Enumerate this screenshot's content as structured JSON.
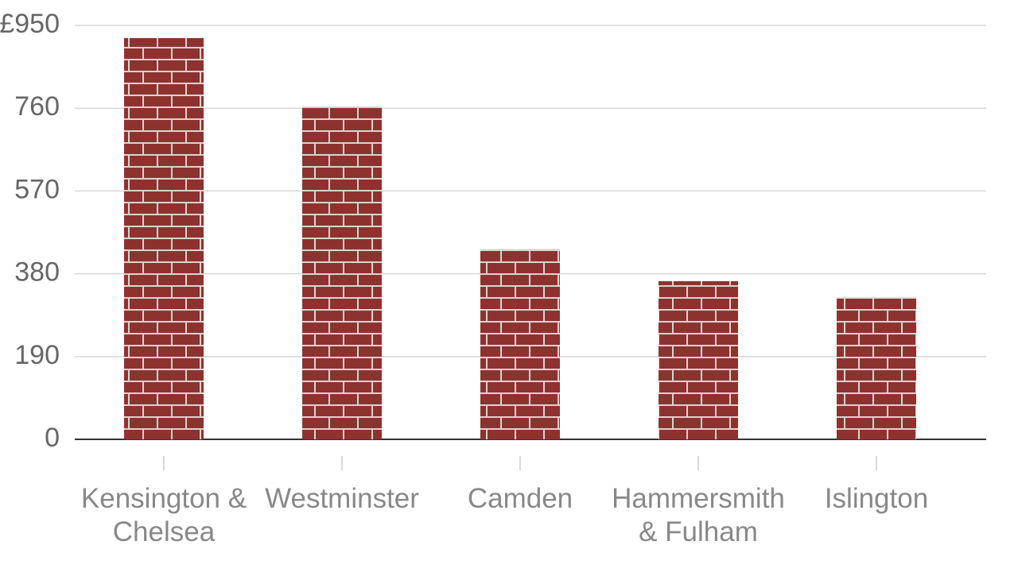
{
  "chart_data": {
    "type": "bar",
    "categories": [
      "Kensington & Chelsea",
      "Westminster",
      "Camden",
      "Hammersmith & Fulham",
      "Islington"
    ],
    "values": [
      921,
      764,
      436,
      363,
      326
    ],
    "color": "#8e3230",
    "ylim": [
      0,
      950
    ],
    "yticks": [
      0,
      190,
      380,
      570,
      760,
      {
        "value": 950,
        "label": "£950"
      }
    ],
    "grid": true
  }
}
